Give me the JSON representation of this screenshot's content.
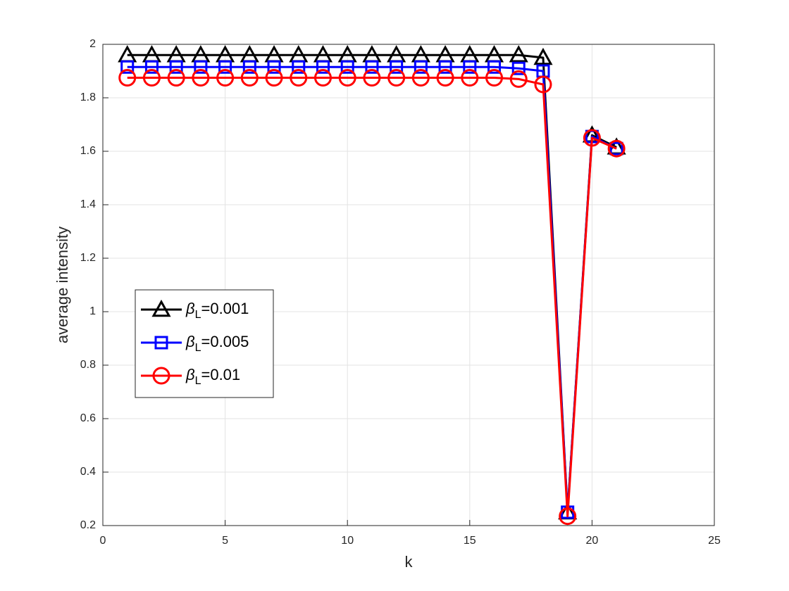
{
  "chart_data": {
    "type": "line",
    "xlabel": "k",
    "ylabel": "average intensity",
    "x": [
      1,
      2,
      3,
      4,
      5,
      6,
      7,
      8,
      9,
      10,
      11,
      12,
      13,
      14,
      15,
      16,
      17,
      18,
      19,
      20,
      21
    ],
    "series": [
      {
        "name": "βL=0.001",
        "color": "#000000",
        "marker": "triangle",
        "values": [
          1.96,
          1.96,
          1.96,
          1.96,
          1.96,
          1.96,
          1.96,
          1.96,
          1.96,
          1.96,
          1.96,
          1.96,
          1.96,
          1.96,
          1.96,
          1.96,
          1.96,
          1.95,
          0.25,
          1.66,
          1.615
        ]
      },
      {
        "name": "βL=0.005",
        "color": "#0000ff",
        "marker": "square",
        "values": [
          1.915,
          1.915,
          1.915,
          1.915,
          1.915,
          1.915,
          1.915,
          1.915,
          1.915,
          1.915,
          1.915,
          1.915,
          1.915,
          1.915,
          1.915,
          1.915,
          1.91,
          1.9,
          0.25,
          1.655,
          1.61
        ]
      },
      {
        "name": "βL=0.01",
        "color": "#ff0000",
        "marker": "circle",
        "values": [
          1.875,
          1.875,
          1.875,
          1.875,
          1.875,
          1.875,
          1.875,
          1.875,
          1.875,
          1.875,
          1.875,
          1.875,
          1.875,
          1.875,
          1.875,
          1.875,
          1.87,
          1.85,
          0.235,
          1.65,
          1.61
        ]
      }
    ],
    "xlim": [
      0,
      25
    ],
    "xticks": [
      0,
      5,
      10,
      15,
      20,
      25
    ],
    "ylim": [
      0.2,
      2
    ],
    "yticks": [
      0.2,
      0.4,
      0.6,
      0.8,
      1,
      1.2,
      1.4,
      1.6,
      1.8,
      2
    ],
    "grid": true,
    "legend": "west"
  }
}
